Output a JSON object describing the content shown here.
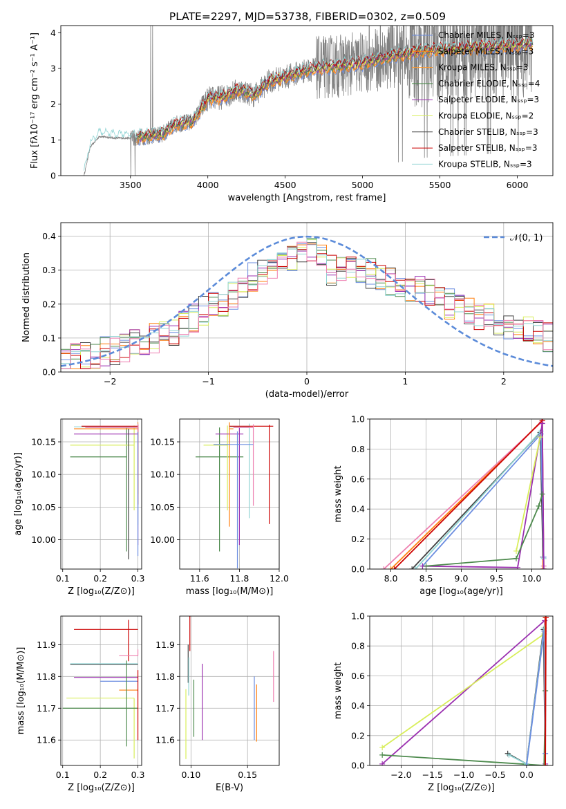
{
  "title": "PLATE=2297, MJD=53738, FIBERID=0302, z=0.509",
  "colors": {
    "chab_miles": "#6b8de0",
    "salp_miles": "#ff7f0e",
    "krou_miles": "#ff9a2e",
    "chab_elodie": "#4d8a4d",
    "salp_elodie": "#9b30b0",
    "krou_elodie": "#d8ee5a",
    "chab_stelib": "#444444",
    "salp_stelib": "#cc0000",
    "krou_stelib": "#8fd3d3",
    "pink": "#ee7fb0",
    "data": "#808080",
    "gauss": "#5b8bd9"
  },
  "chart_data": [
    {
      "id": "spectrum",
      "type": "line",
      "xlabel": "wavelength [Angstrom, rest frame]",
      "ylabel": "Flux [fλ10⁻¹⁷ erg cm⁻² s⁻¹ A⁻¹]",
      "xlim": [
        3050,
        6230
      ],
      "ylim": [
        0,
        4.2
      ],
      "xticks": [
        3500,
        4000,
        4500,
        5000,
        5500,
        6000
      ],
      "yticks": [
        0,
        1,
        2,
        3,
        4
      ],
      "legend": [
        {
          "label": "Chabrier MILES, Nₛₛₚ=3",
          "color": "chab_miles"
        },
        {
          "label": "Salpeter MILES, Nₛₛₚ=3",
          "color": "salp_miles"
        },
        {
          "label": "Kroupa MILES, Nₛₛₚ=3",
          "color": "krou_miles"
        },
        {
          "label": "Chabrier ELODIE, Nₛₛₚ=4",
          "color": "chab_elodie"
        },
        {
          "label": "Salpeter ELODIE, Nₛₛₚ=3",
          "color": "salp_elodie"
        },
        {
          "label": "Kroupa ELODIE, Nₛₛₚ=2",
          "color": "krou_elodie"
        },
        {
          "label": "Chabrier STELIB, Nₛₛₚ=3",
          "color": "chab_stelib"
        },
        {
          "label": "Salpeter STELIB, Nₛₛₚ=3",
          "color": "salp_stelib"
        },
        {
          "label": "Kroupa STELIB, Nₛₛₚ=3",
          "color": "krou_stelib"
        }
      ],
      "continuum": {
        "x": [
          3200,
          3240,
          3300,
          3400,
          3500,
          3600,
          3700,
          3800,
          3900,
          4000,
          4100,
          4200,
          4300,
          4400,
          4500,
          4600,
          4700,
          4800,
          4900,
          5000,
          5200,
          5400,
          5600,
          5800,
          6000,
          6100
        ],
        "y": [
          0,
          0.8,
          1.1,
          1.05,
          1.05,
          1.1,
          1.15,
          1.45,
          1.5,
          2.15,
          2.2,
          2.4,
          2.25,
          2.65,
          2.75,
          2.9,
          3.0,
          3.05,
          3.1,
          3.15,
          3.35,
          3.5,
          3.55,
          3.6,
          3.65,
          3.7
        ]
      }
    },
    {
      "id": "residuals",
      "type": "line",
      "xlabel": "(data-model)/error",
      "ylabel": "Normed distribution",
      "xlim": [
        -2.5,
        2.5
      ],
      "ylim": [
        0,
        0.44
      ],
      "xticks": [
        -2,
        -1,
        0,
        1,
        2
      ],
      "yticks": [
        0.0,
        0.1,
        0.2,
        0.3,
        0.4
      ],
      "gauss_label": "𝒩(0, 1)",
      "hist_base": {
        "x": [
          -2.5,
          -2.4,
          -2.3,
          -2.2,
          -2.1,
          -2.0,
          -1.9,
          -1.8,
          -1.7,
          -1.6,
          -1.5,
          -1.4,
          -1.3,
          -1.2,
          -1.1,
          -1.0,
          -0.9,
          -0.8,
          -0.7,
          -0.6,
          -0.5,
          -0.4,
          -0.3,
          -0.2,
          -0.1,
          0.0,
          0.1,
          0.2,
          0.3,
          0.4,
          0.5,
          0.6,
          0.7,
          0.8,
          0.9,
          1.0,
          1.1,
          1.2,
          1.3,
          1.4,
          1.5,
          1.6,
          1.7,
          1.8,
          1.9,
          2.0,
          2.1,
          2.2,
          2.3,
          2.4
        ],
        "y": [
          0.03,
          0.04,
          0.045,
          0.05,
          0.06,
          0.065,
          0.07,
          0.08,
          0.09,
          0.1,
          0.11,
          0.12,
          0.14,
          0.16,
          0.18,
          0.2,
          0.2,
          0.22,
          0.25,
          0.28,
          0.3,
          0.31,
          0.32,
          0.33,
          0.34,
          0.35,
          0.33,
          0.3,
          0.31,
          0.32,
          0.3,
          0.29,
          0.28,
          0.27,
          0.26,
          0.25,
          0.24,
          0.23,
          0.22,
          0.2,
          0.19,
          0.18,
          0.17,
          0.16,
          0.15,
          0.14,
          0.13,
          0.12,
          0.11,
          0.1
        ]
      }
    },
    {
      "id": "age_vs_Z",
      "type": "scatter",
      "xlabel": "Z [log₁₀(Z/Z⊙)]",
      "ylabel": "age  [log₁₀(age/yr)]",
      "xlim": [
        0.095,
        0.31
      ],
      "ylim": [
        9.955,
        10.185
      ],
      "xticks": [
        0.1,
        0.2,
        0.3
      ],
      "yticks": [
        10.0,
        10.05,
        10.1,
        10.15
      ],
      "points": [
        {
          "x": 0.27,
          "y": 10.127,
          "xerr": [
            0.15,
            0.0
          ],
          "yerr": [
            0.145,
            0.045
          ],
          "color": "chab_elodie"
        },
        {
          "x": 0.29,
          "y": 10.145,
          "xerr": [
            0.17,
            0.0
          ],
          "yerr": [
            0.1,
            0.03
          ],
          "color": "krou_elodie"
        },
        {
          "x": 0.3,
          "y": 10.162,
          "xerr": [
            0.17,
            0.0
          ],
          "yerr": [
            0.17,
            0.01
          ],
          "color": "salp_elodie"
        },
        {
          "x": 0.3,
          "y": 10.17,
          "xerr": [
            0.17,
            0.0
          ],
          "yerr": [
            0.1,
            0.01
          ],
          "color": "salp_miles"
        },
        {
          "x": 0.3,
          "y": 10.173,
          "xerr": [
            0.17,
            0.0
          ],
          "yerr": [
            0.15,
            0.005
          ],
          "color": "krou_stelib"
        },
        {
          "x": 0.3,
          "y": 10.174,
          "xerr": [
            0.15,
            0.0
          ],
          "yerr": [
            0.12,
            0.002
          ],
          "color": "salp_stelib"
        },
        {
          "x": 0.3,
          "y": 10.172,
          "xerr": [
            0.14,
            0.0
          ],
          "yerr": [
            0.08,
            0.005
          ],
          "color": "pink"
        },
        {
          "x": 0.275,
          "y": 10.17,
          "xerr": [
            0.0,
            0.0
          ],
          "yerr": [
            0.2,
            0.0
          ],
          "color": "chab_stelib"
        },
        {
          "x": 0.3,
          "y": 10.165,
          "xerr": [
            0.0,
            0.0
          ],
          "yerr": [
            0.19,
            0.0
          ],
          "color": "chab_miles"
        }
      ]
    },
    {
      "id": "age_vs_mass",
      "type": "scatter",
      "xlabel": "mass [log₁₀(M/M⊙)]",
      "ylabel": "",
      "xlim": [
        11.5,
        12.0
      ],
      "ylim": [
        9.955,
        10.185
      ],
      "xticks": [
        11.6,
        11.8,
        12.0
      ],
      "yticks": [
        10.0,
        10.05,
        10.1,
        10.15
      ],
      "points": [
        {
          "x": 11.7,
          "y": 10.127,
          "xerr": [
            0.12,
            0.12
          ],
          "yerr": [
            0.145,
            0.045
          ],
          "color": "chab_elodie"
        },
        {
          "x": 11.74,
          "y": 10.145,
          "xerr": [
            0.12,
            0.0
          ],
          "yerr": [
            0.1,
            0.03
          ],
          "color": "krou_elodie"
        },
        {
          "x": 11.8,
          "y": 10.162,
          "xerr": [
            0.12,
            0.02
          ],
          "yerr": [
            0.17,
            0.01
          ],
          "color": "salp_elodie"
        },
        {
          "x": 11.75,
          "y": 10.17,
          "xerr": [
            0.0,
            0.02
          ],
          "yerr": [
            0.15,
            0.01
          ],
          "color": "salp_miles"
        },
        {
          "x": 11.85,
          "y": 10.173,
          "xerr": [
            0.1,
            0.0
          ],
          "yerr": [
            0.14,
            0.005
          ],
          "color": "krou_stelib"
        },
        {
          "x": 11.95,
          "y": 10.174,
          "xerr": [
            0.2,
            0.02
          ],
          "yerr": [
            0.15,
            0.002
          ],
          "color": "salp_stelib"
        },
        {
          "x": 11.87,
          "y": 10.172,
          "xerr": [
            0.1,
            0.0
          ],
          "yerr": [
            0.12,
            0.005
          ],
          "color": "pink"
        },
        {
          "x": 11.79,
          "y": 10.146,
          "xerr": [
            0.12,
            0.08
          ],
          "yerr": [
            0.19,
            0.02
          ],
          "color": "chab_miles"
        }
      ]
    },
    {
      "id": "mw_vs_age",
      "type": "line",
      "xlabel": "age  [log₁₀(age/yr)]",
      "ylabel": "mass weight",
      "xlim": [
        7.7,
        10.3
      ],
      "ylim": [
        0,
        1.0
      ],
      "xticks": [
        8.0,
        8.5,
        9.0,
        9.5,
        10.0
      ],
      "yticks": [
        0.0,
        0.2,
        0.4,
        0.6,
        0.8,
        1.0
      ],
      "series": [
        {
          "color": "salp_miles",
          "x": [
            8.0,
            10.15,
            10.16
          ],
          "y": [
            0.0,
            0.99,
            0.0
          ]
        },
        {
          "color": "pink",
          "x": [
            7.9,
            10.14,
            10.17
          ],
          "y": [
            0.0,
            0.98,
            0.02
          ]
        },
        {
          "color": "salp_stelib",
          "x": [
            8.05,
            10.15,
            10.17
          ],
          "y": [
            0.0,
            0.99,
            0.0
          ]
        },
        {
          "color": "chab_stelib",
          "x": [
            8.3,
            10.12,
            10.16
          ],
          "y": [
            0.0,
            0.91,
            0.08
          ]
        },
        {
          "color": "krou_stelib",
          "x": [
            8.35,
            10.13,
            10.17
          ],
          "y": [
            0.0,
            0.92,
            0.07
          ]
        },
        {
          "color": "chab_miles",
          "x": [
            8.45,
            10.13,
            10.17
          ],
          "y": [
            0.02,
            0.9,
            0.08
          ]
        },
        {
          "color": "salp_elodie",
          "x": [
            8.45,
            9.8,
            10.15,
            10.17
          ],
          "y": [
            0.02,
            0.01,
            0.97,
            0.0
          ]
        },
        {
          "color": "krou_elodie",
          "x": [
            9.78,
            10.12
          ],
          "y": [
            0.12,
            0.88
          ]
        },
        {
          "color": "chab_elodie",
          "x": [
            8.5,
            9.78,
            10.1,
            10.15
          ],
          "y": [
            0.02,
            0.07,
            0.42,
            0.5
          ]
        }
      ]
    },
    {
      "id": "mass_vs_Z",
      "type": "scatter",
      "xlabel": "Z [log₁₀(Z/Z⊙)]",
      "ylabel": "mass [log₁₀(M/M⊙)]",
      "xlim": [
        0.095,
        0.31
      ],
      "ylim": [
        11.52,
        11.99
      ],
      "xticks": [
        0.1,
        0.2,
        0.3
      ],
      "yticks": [
        11.6,
        11.7,
        11.8,
        11.9
      ],
      "points": [
        {
          "x": 0.3,
          "y": 11.948,
          "xerr": [
            0.17,
            0.0
          ],
          "yerr": [
            0.0,
            0.0
          ],
          "color": "salp_stelib"
        },
        {
          "x": 0.275,
          "y": 11.948,
          "xerr": [
            0.0,
            0.0
          ],
          "yerr": [
            0.1,
            0.03
          ],
          "color": "salp_stelib"
        },
        {
          "x": 0.3,
          "y": 11.865,
          "xerr": [
            0.05,
            0.0
          ],
          "yerr": [
            0.0,
            0.02
          ],
          "color": "pink"
        },
        {
          "x": 0.3,
          "y": 11.838,
          "xerr": [
            0.18,
            0.0
          ],
          "yerr": [
            0.0,
            0.0
          ],
          "color": "chab_stelib"
        },
        {
          "x": 0.3,
          "y": 11.84,
          "xerr": [
            0.18,
            0.0
          ],
          "yerr": [
            0.0,
            0.0
          ],
          "color": "krou_stelib"
        },
        {
          "x": 0.3,
          "y": 11.797,
          "xerr": [
            0.17,
            0.0
          ],
          "yerr": [
            0.0,
            0.0
          ],
          "color": "salp_elodie"
        },
        {
          "x": 0.3,
          "y": 11.785,
          "xerr": [
            0.1,
            0.0
          ],
          "yerr": [
            0.0,
            0.0
          ],
          "color": "chab_miles"
        },
        {
          "x": 0.3,
          "y": 11.757,
          "xerr": [
            0.05,
            0.0
          ],
          "yerr": [
            0.0,
            0.0
          ],
          "color": "salp_miles"
        },
        {
          "x": 0.29,
          "y": 11.732,
          "xerr": [
            0.18,
            0.0
          ],
          "yerr": [
            0.19,
            0.0
          ],
          "color": "krou_elodie"
        },
        {
          "x": 0.3,
          "y": 11.7,
          "xerr": [
            0.2,
            0.0
          ],
          "yerr": [
            0.0,
            0.0
          ],
          "color": "chab_elodie"
        },
        {
          "x": 0.27,
          "y": 11.7,
          "xerr": [
            0.0,
            0.0
          ],
          "yerr": [
            0.12,
            0.15
          ],
          "color": "chab_elodie"
        },
        {
          "x": 0.3,
          "y": 11.8,
          "xerr": [
            0.0,
            0.0
          ],
          "yerr": [
            0.2,
            0.02
          ],
          "color": "salp_stelib"
        }
      ]
    },
    {
      "id": "mass_vs_ebv",
      "type": "scatter",
      "xlabel": "E(B-V)",
      "ylabel": "",
      "xlim": [
        0.09,
        0.178
      ],
      "ylim": [
        11.52,
        11.99
      ],
      "xticks": [
        0.1,
        0.15
      ],
      "yticks": [
        11.6,
        11.7,
        11.8,
        11.9
      ],
      "points": [
        {
          "x": 0.0955,
          "y": 11.65,
          "yerr": [
            0.11,
            0.11
          ],
          "color": "krou_elodie"
        },
        {
          "x": 0.0975,
          "y": 11.84,
          "yerr": [
            0.06,
            0.06
          ],
          "color": "chab_stelib"
        },
        {
          "x": 0.099,
          "y": 11.94,
          "yerr": [
            0.06,
            0.06
          ],
          "color": "salp_stelib"
        },
        {
          "x": 0.098,
          "y": 11.8,
          "yerr": [
            0.06,
            0.06
          ],
          "color": "krou_stelib"
        },
        {
          "x": 0.1025,
          "y": 11.7,
          "yerr": [
            0.09,
            0.09
          ],
          "color": "chab_elodie"
        },
        {
          "x": 0.11,
          "y": 11.72,
          "yerr": [
            0.12,
            0.12
          ],
          "color": "salp_elodie"
        },
        {
          "x": 0.156,
          "y": 11.7,
          "yerr": [
            0.1,
            0.1
          ],
          "color": "chab_miles"
        },
        {
          "x": 0.158,
          "y": 11.685,
          "yerr": [
            0.09,
            0.09
          ],
          "color": "salp_miles"
        },
        {
          "x": 0.173,
          "y": 11.8,
          "yerr": [
            0.08,
            0.08
          ],
          "color": "pink"
        }
      ]
    },
    {
      "id": "mw_vs_Z",
      "type": "line",
      "xlabel": "Z [log₁₀(Z/Z⊙)]",
      "ylabel": "mass weight",
      "xlim": [
        -2.5,
        0.42
      ],
      "ylim": [
        0,
        1.0
      ],
      "xticks": [
        -2.0,
        -1.5,
        -1.0,
        -0.5,
        0.0
      ],
      "yticks": [
        0.0,
        0.2,
        0.4,
        0.6,
        0.8,
        1.0
      ],
      "series": [
        {
          "color": "salp_elodie",
          "x": [
            -2.3,
            0.29,
            0.3
          ],
          "y": [
            0.01,
            0.97,
            0.01
          ]
        },
        {
          "color": "krou_elodie",
          "x": [
            -2.3,
            0.28
          ],
          "y": [
            0.12,
            0.88
          ]
        },
        {
          "color": "chab_elodie",
          "x": [
            -2.3,
            0.28,
            0.3
          ],
          "y": [
            0.07,
            0.0,
            0.5
          ]
        },
        {
          "color": "chab_stelib",
          "x": [
            -0.3,
            0.0,
            0.27,
            0.3
          ],
          "y": [
            0.08,
            0.01,
            0.91,
            0.0
          ]
        },
        {
          "color": "krou_stelib",
          "x": [
            -0.28,
            0.0,
            0.28,
            0.3
          ],
          "y": [
            0.07,
            0.01,
            0.92,
            0.0
          ]
        },
        {
          "color": "chab_miles",
          "x": [
            0.0,
            0.28,
            0.3
          ],
          "y": [
            0.0,
            0.9,
            0.08
          ]
        },
        {
          "color": "salp_miles",
          "x": [
            0.3,
            0.3
          ],
          "y": [
            0.0,
            0.99
          ]
        },
        {
          "color": "salp_stelib",
          "x": [
            0.3,
            0.31
          ],
          "y": [
            0.0,
            0.99
          ]
        }
      ]
    }
  ]
}
